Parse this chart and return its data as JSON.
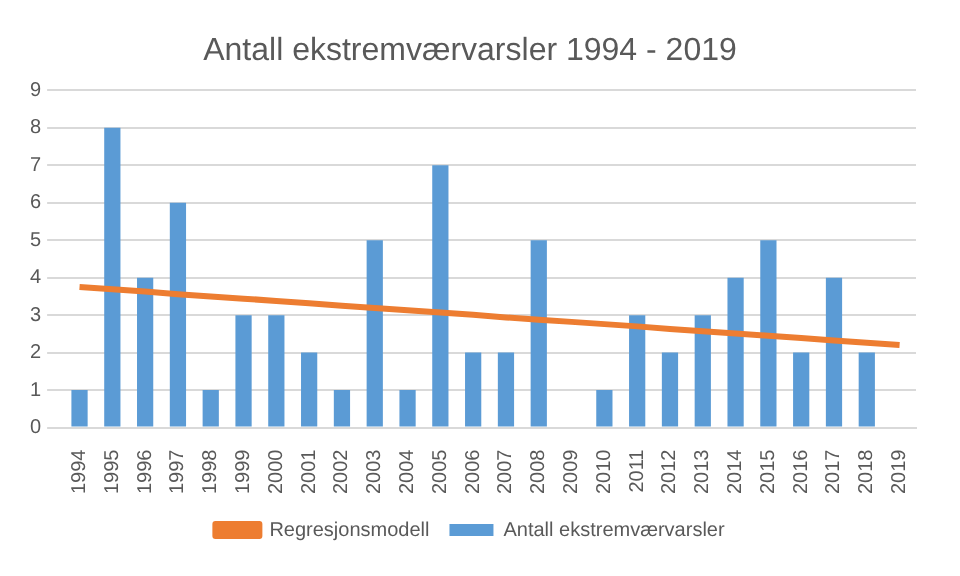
{
  "chart_data": {
    "type": "bar",
    "title": "Antall ekstremværvarsler 1994 - 2019",
    "categories": [
      "1994",
      "1995",
      "1996",
      "1997",
      "1998",
      "1999",
      "2000",
      "2001",
      "2002",
      "2003",
      "2004",
      "2005",
      "2006",
      "2007",
      "2008",
      "2009",
      "2010",
      "2011",
      "2012",
      "2013",
      "2014",
      "2015",
      "2016",
      "2017",
      "2018",
      "2019"
    ],
    "series": [
      {
        "name": "Antall ekstremværvarsler",
        "color": "#5b9bd5",
        "values": [
          1,
          8,
          4,
          6,
          1,
          3,
          3,
          2,
          1,
          5,
          1,
          7,
          2,
          2,
          5,
          0,
          1,
          3,
          2,
          3,
          4,
          5,
          2,
          4,
          2,
          0
        ]
      },
      {
        "name": "Regresjonsmodell",
        "type": "line",
        "color": "#ed7d31",
        "values": [
          3.75,
          3.69,
          3.63,
          3.56,
          3.5,
          3.44,
          3.38,
          3.32,
          3.25,
          3.19,
          3.13,
          3.07,
          3.01,
          2.94,
          2.88,
          2.82,
          2.76,
          2.7,
          2.63,
          2.57,
          2.51,
          2.45,
          2.39,
          2.32,
          2.26,
          2.2
        ]
      }
    ],
    "ylim": [
      0,
      9
    ],
    "yticks": [
      0,
      1,
      2,
      3,
      4,
      5,
      6,
      7,
      8,
      9
    ],
    "grid": "y",
    "legend": "bottom",
    "marker": "none"
  }
}
